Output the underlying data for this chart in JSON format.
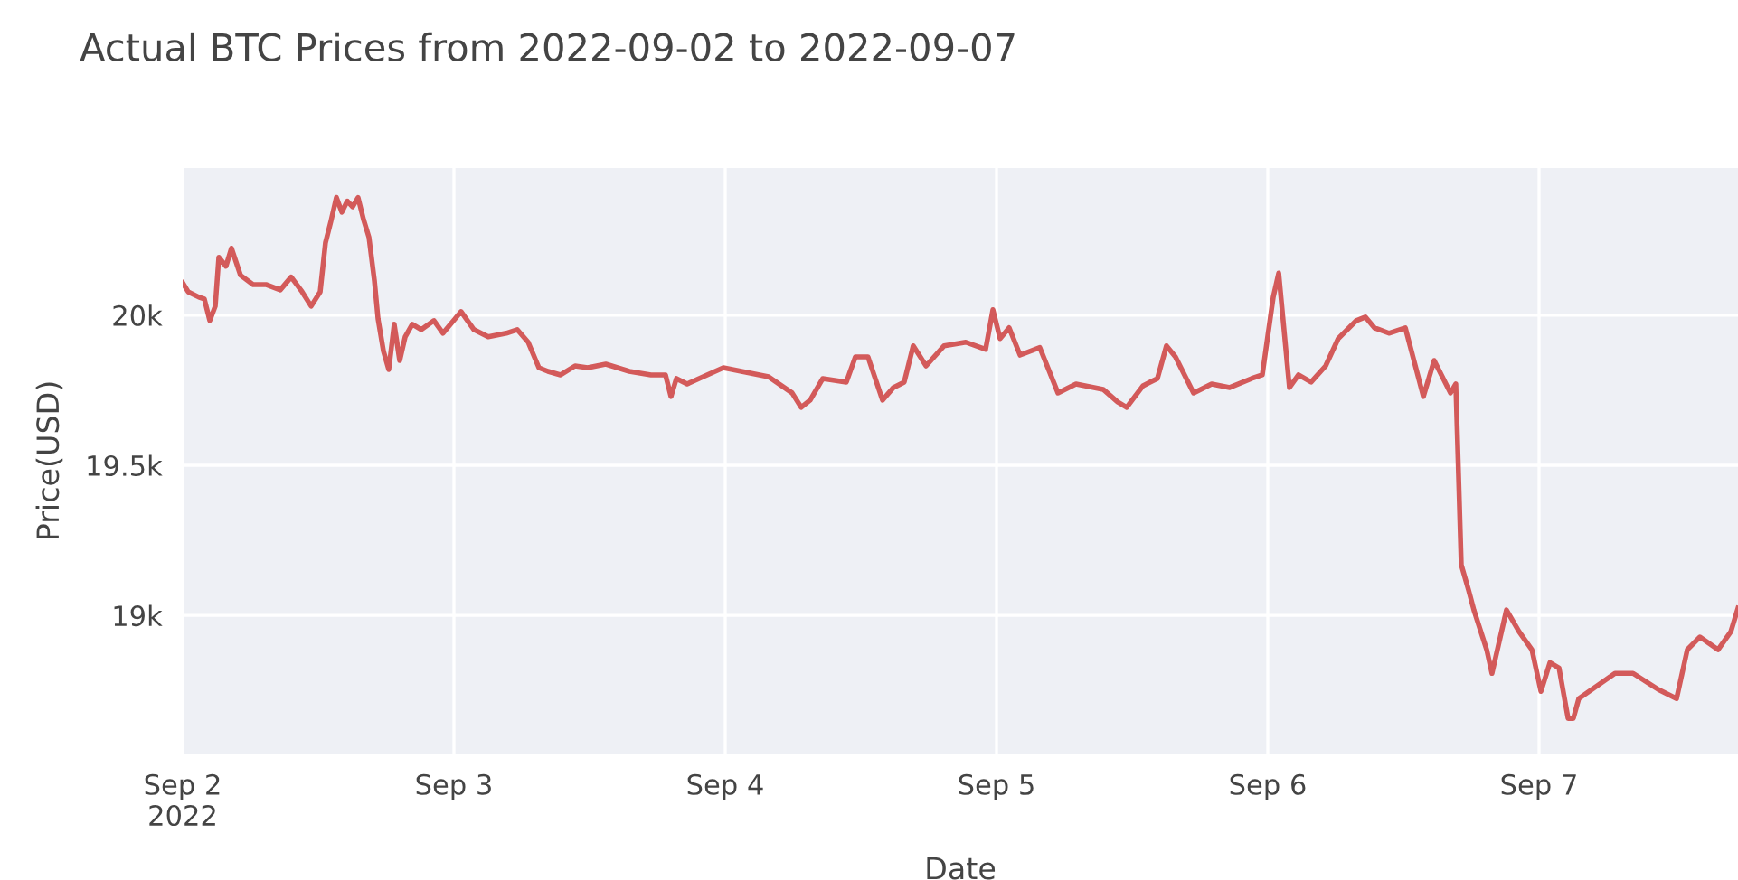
{
  "chart_data": {
    "type": "line",
    "title": "Actual BTC Prices from 2022-09-02 to 2022-09-07",
    "xlabel": "Date",
    "ylabel": "Price(USD)",
    "xlim": [
      "2022-09-02T00:00",
      "2022-09-07T17:36"
    ],
    "xticks": [
      {
        "value": "2022-09-02T00:00",
        "label": "Sep 2\n2022"
      },
      {
        "value": "2022-09-03T00:00",
        "label": "Sep 3"
      },
      {
        "value": "2022-09-04T00:00",
        "label": "Sep 4"
      },
      {
        "value": "2022-09-05T00:00",
        "label": "Sep 5"
      },
      {
        "value": "2022-09-06T00:00",
        "label": "Sep 6"
      },
      {
        "value": "2022-09-07T00:00",
        "label": "Sep 7"
      }
    ],
    "ylim": [
      18540,
      20490
    ],
    "yticks": [
      {
        "value": 19000,
        "label": "19k"
      },
      {
        "value": 19500,
        "label": "19.5k"
      },
      {
        "value": 20000,
        "label": "20k"
      }
    ],
    "grid": true,
    "legend": false,
    "marker": "none",
    "line_style": "solid",
    "series": [
      {
        "color": "#d35a5a",
        "x": [
          "2022-09-02T00:00",
          "2022-09-02T00:29",
          "2022-09-02T01:26",
          "2022-09-02T01:55",
          "2022-09-02T02:24",
          "2022-09-02T02:53",
          "2022-09-02T03:12",
          "2022-09-02T03:50",
          "2022-09-02T04:19",
          "2022-09-02T05:07",
          "2022-09-02T06:14",
          "2022-09-02T07:22",
          "2022-09-02T08:38",
          "2022-09-02T09:36",
          "2022-09-02T10:34",
          "2022-09-02T11:22",
          "2022-09-02T12:10",
          "2022-09-02T12:38",
          "2022-09-02T13:07",
          "2022-09-02T13:36",
          "2022-09-02T14:05",
          "2022-09-02T14:34",
          "2022-09-02T15:02",
          "2022-09-02T15:31",
          "2022-09-02T16:00",
          "2022-09-02T16:29",
          "2022-09-02T16:58",
          "2022-09-02T17:17",
          "2022-09-02T17:46",
          "2022-09-02T18:14",
          "2022-09-02T18:43",
          "2022-09-02T19:12",
          "2022-09-02T19:41",
          "2022-09-02T20:19",
          "2022-09-02T21:07",
          "2022-09-02T22:14",
          "2022-09-02T23:02",
          "2022-09-03T00:38",
          "2022-09-03T01:46",
          "2022-09-03T03:02",
          "2022-09-03T04:38",
          "2022-09-03T05:36",
          "2022-09-03T06:34",
          "2022-09-03T07:31",
          "2022-09-03T08:19",
          "2022-09-03T09:26",
          "2022-09-03T10:43",
          "2022-09-03T11:50",
          "2022-09-03T13:26",
          "2022-09-03T15:31",
          "2022-09-03T17:26",
          "2022-09-03T18:43",
          "2022-09-03T19:12",
          "2022-09-03T19:41",
          "2022-09-03T20:38",
          "2022-09-03T22:24",
          "2022-09-03T23:50",
          "2022-09-04T01:26",
          "2022-09-04T03:50",
          "2022-09-04T05:55",
          "2022-09-04T06:43",
          "2022-09-04T07:31",
          "2022-09-04T08:38",
          "2022-09-04T10:43",
          "2022-09-04T11:31",
          "2022-09-04T12:38",
          "2022-09-04T13:55",
          "2022-09-04T14:53",
          "2022-09-04T15:50",
          "2022-09-04T16:38",
          "2022-09-04T17:46",
          "2022-09-04T19:22",
          "2022-09-04T21:17",
          "2022-09-04T23:02",
          "2022-09-04T23:41",
          "2022-09-05T00:19",
          "2022-09-05T01:07",
          "2022-09-05T02:05",
          "2022-09-05T03:50",
          "2022-09-05T05:26",
          "2022-09-05T07:02",
          "2022-09-05T09:26",
          "2022-09-05T10:43",
          "2022-09-05T11:31",
          "2022-09-05T12:58",
          "2022-09-05T14:14",
          "2022-09-05T15:02",
          "2022-09-05T15:50",
          "2022-09-05T17:26",
          "2022-09-05T19:02",
          "2022-09-05T20:38",
          "2022-09-05T22:34",
          "2022-09-05T23:31",
          "2022-09-06T00:29",
          "2022-09-06T00:58",
          "2022-09-06T01:55",
          "2022-09-06T02:43",
          "2022-09-06T03:50",
          "2022-09-06T05:07",
          "2022-09-06T06:14",
          "2022-09-06T07:02",
          "2022-09-06T07:50",
          "2022-09-06T08:38",
          "2022-09-06T09:26",
          "2022-09-06T10:43",
          "2022-09-06T12:10",
          "2022-09-06T13:46",
          "2022-09-06T14:43",
          "2022-09-06T16:10",
          "2022-09-06T16:38",
          "2022-09-06T17:07",
          "2022-09-06T17:46",
          "2022-09-06T18:14",
          "2022-09-06T19:22",
          "2022-09-06T19:50",
          "2022-09-06T21:07",
          "2022-09-06T22:14",
          "2022-09-06T23:22",
          "2022-09-07T00:10",
          "2022-09-07T00:58",
          "2022-09-07T01:46",
          "2022-09-07T02:34",
          "2022-09-07T03:02",
          "2022-09-07T03:31",
          "2022-09-07T05:07",
          "2022-09-07T06:43",
          "2022-09-07T08:19",
          "2022-09-07T10:34",
          "2022-09-07T12:10",
          "2022-09-07T13:07",
          "2022-09-07T14:14",
          "2022-09-07T15:50",
          "2022-09-07T16:58",
          "2022-09-07T17:36"
        ],
        "values": [
          20108,
          20078,
          20060,
          20054,
          19982,
          20030,
          20193,
          20163,
          20223,
          20133,
          20102,
          20102,
          20084,
          20127,
          20078,
          20030,
          20078,
          20241,
          20313,
          20392,
          20343,
          20380,
          20361,
          20392,
          20319,
          20259,
          20114,
          19988,
          19880,
          19819,
          19970,
          19849,
          19928,
          19970,
          19952,
          19982,
          19940,
          20012,
          19952,
          19928,
          19940,
          19952,
          19910,
          19825,
          19813,
          19801,
          19831,
          19825,
          19837,
          19813,
          19801,
          19801,
          19729,
          19789,
          19771,
          19801,
          19825,
          19813,
          19795,
          19741,
          19693,
          19717,
          19789,
          19777,
          19861,
          19861,
          19717,
          19759,
          19777,
          19898,
          19831,
          19898,
          19910,
          19886,
          20018,
          19922,
          19958,
          19867,
          19892,
          19741,
          19771,
          19753,
          19711,
          19693,
          19765,
          19789,
          19898,
          19861,
          19741,
          19771,
          19759,
          19789,
          19801,
          20060,
          20140,
          19759,
          19801,
          19777,
          19831,
          19922,
          19952,
          19982,
          19994,
          19958,
          19940,
          19958,
          19729,
          19849,
          19741,
          19771,
          19169,
          19084,
          19018,
          18886,
          18807,
          19018,
          18946,
          18886,
          18747,
          18843,
          18825,
          18657,
          18657,
          18723,
          18765,
          18807,
          18807,
          18753,
          18723,
          18886,
          18928,
          18886,
          18946,
          19024
        ]
      }
    ]
  }
}
